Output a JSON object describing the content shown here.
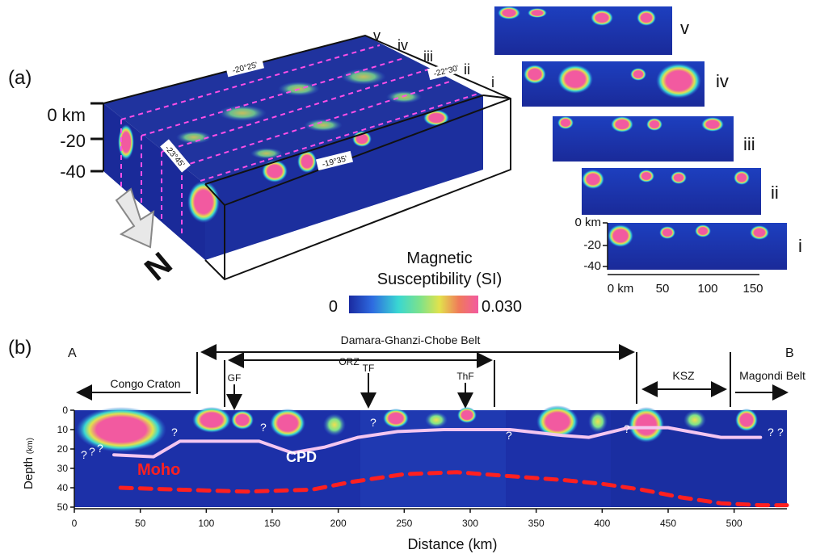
{
  "panel_a": {
    "label": "(a)",
    "depth_ticks": [
      "0 km",
      "-20",
      "-40"
    ],
    "latitude_labels": [
      "-20°25'",
      "-23°45'",
      "-19°35'",
      "-22°30'"
    ],
    "profile_marks": [
      "v",
      "iv",
      "iii",
      "ii",
      "i"
    ],
    "north_label": "N",
    "colorbar": {
      "title_line1": "Magnetic",
      "title_line2": "Susceptibility (SI)",
      "min_label": "0",
      "max_label": "0.030",
      "colors": [
        "#1a2aa0",
        "#2e6be0",
        "#39d7d2",
        "#7de28a",
        "#e2e24c",
        "#f07a5a",
        "#f25aa0"
      ]
    },
    "sections": {
      "labels": [
        "v",
        "iv",
        "iii",
        "ii",
        "i"
      ],
      "depth_ticks": [
        "0 km",
        "-20",
        "-40"
      ],
      "distance_ticks": [
        "0 km",
        "50",
        "100",
        "150"
      ]
    }
  },
  "panel_b": {
    "label": "(b)",
    "end_a": "A",
    "end_b": "B",
    "belts": {
      "damara": "Damara-Ghanzi-Chobe Belt",
      "congo": "Congo Craton",
      "orz": "ORZ",
      "ksz": "KSZ",
      "magondi": "Magondi Belt"
    },
    "faults": [
      "GF",
      "TF",
      "ThF"
    ],
    "annotations": {
      "moho": "Moho",
      "cpd": "CPD",
      "unknown": "?"
    },
    "ylabel": "Depth",
    "ylabel_unit": "(km)",
    "xlabel": "Distance (km)",
    "y_ticks": [
      "0",
      "10",
      "20",
      "30",
      "40",
      "50"
    ],
    "x_ticks": [
      "0",
      "50",
      "100",
      "150",
      "200",
      "250",
      "300",
      "350",
      "400",
      "450",
      "500"
    ]
  },
  "chart_data": {
    "type": "line",
    "xlabel": "Distance (km)",
    "ylabel": "Depth (km)",
    "xlim": [
      0,
      540
    ],
    "ylim": [
      0,
      50
    ],
    "series": [
      {
        "name": "Moho",
        "x": [
          35,
          80,
          130,
          180,
          210,
          250,
          290,
          330,
          370,
          400,
          430,
          460,
          490,
          520,
          540
        ],
        "y": [
          40,
          41,
          42,
          41,
          37,
          33,
          32,
          34,
          36,
          38,
          41,
          45,
          48,
          49,
          49
        ]
      },
      {
        "name": "CPD",
        "x": [
          30,
          60,
          80,
          140,
          165,
          190,
          215,
          245,
          280,
          330,
          370,
          390,
          420,
          450,
          490,
          520
        ],
        "y": [
          23,
          24,
          16,
          16,
          22,
          19,
          14,
          11,
          10,
          10,
          13,
          14,
          9,
          9,
          14,
          14
        ]
      }
    ]
  }
}
